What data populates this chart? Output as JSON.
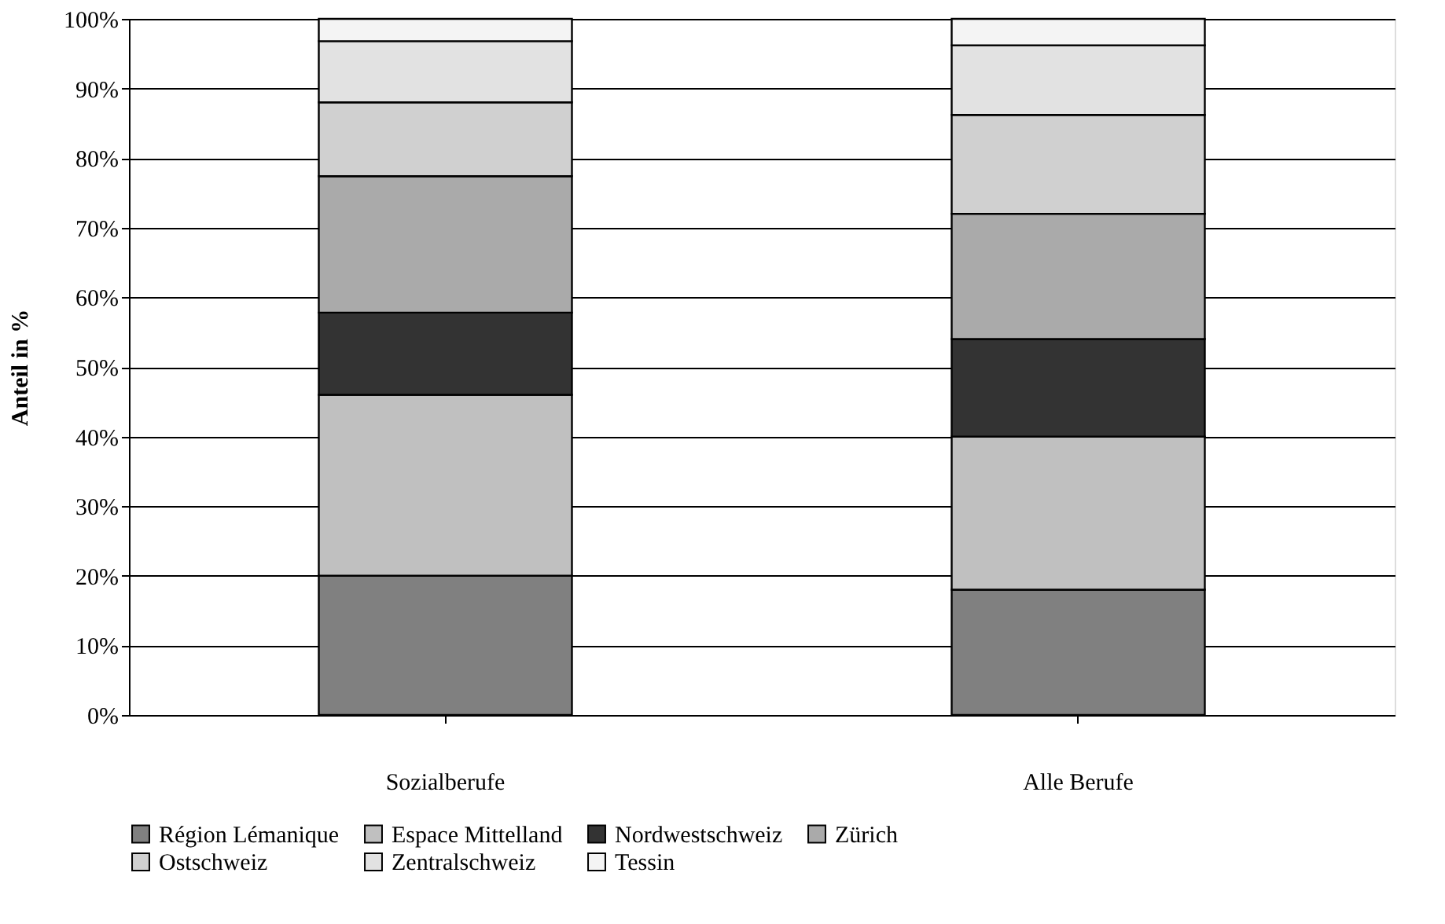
{
  "chart_data": {
    "type": "bar",
    "stacked": true,
    "ylabel": "Anteil in %",
    "categories": [
      "Sozialberufe",
      "Alle Berufe"
    ],
    "series": [
      {
        "name": "Région Lémanique",
        "color": "#808080",
        "values": [
          20,
          18
        ]
      },
      {
        "name": "Espace Mittelland",
        "color": "#c0c0c0",
        "values": [
          26,
          22
        ]
      },
      {
        "name": "Nordwestschweiz",
        "color": "#333333",
        "values": [
          11.8,
          14
        ]
      },
      {
        "name": "Zürich",
        "color": "#aaaaaa",
        "values": [
          19.6,
          18
        ]
      },
      {
        "name": "Ostschweiz",
        "color": "#d0d0d0",
        "values": [
          10.6,
          14.2
        ]
      },
      {
        "name": "Zentralschweiz",
        "color": "#e2e2e2",
        "values": [
          8.8,
          10
        ]
      },
      {
        "name": "Tessin",
        "color": "#f4f4f4",
        "values": [
          3.2,
          3.8
        ]
      }
    ],
    "ylim": [
      0,
      100
    ],
    "yticks": [
      {
        "value": 0,
        "label": "0%"
      },
      {
        "value": 10,
        "label": "10%"
      },
      {
        "value": 20,
        "label": "20%"
      },
      {
        "value": 30,
        "label": "30%"
      },
      {
        "value": 40,
        "label": "40%"
      },
      {
        "value": 50,
        "label": "50%"
      },
      {
        "value": 60,
        "label": "60%"
      },
      {
        "value": 70,
        "label": "70%"
      },
      {
        "value": 80,
        "label": "80%"
      },
      {
        "value": 90,
        "label": "90%"
      },
      {
        "value": 100,
        "label": "100%"
      }
    ],
    "grid": "y",
    "legend": "bottom"
  }
}
